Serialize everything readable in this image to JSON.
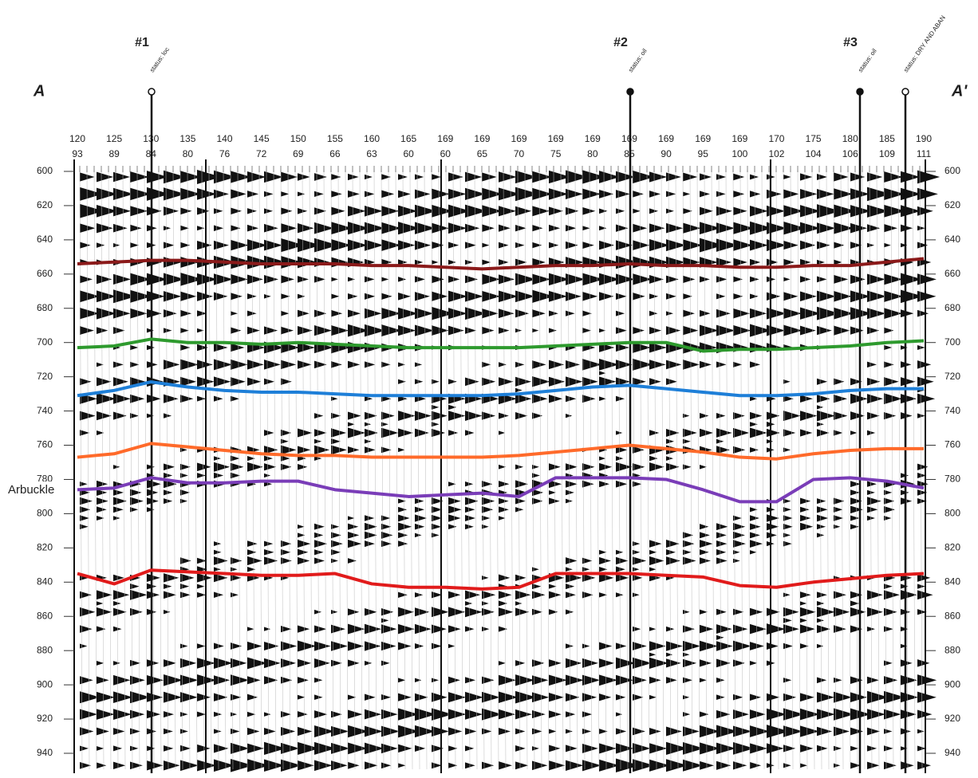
{
  "chart_data": {
    "type": "line",
    "section": {
      "start": "A",
      "end": "A'"
    },
    "annotation": "Arbuckle",
    "wells": [
      {
        "label": "#1",
        "status": "status: loc"
      },
      {
        "label": "#2",
        "status": "status: oil"
      },
      {
        "label": "#3",
        "status": "status: oil"
      },
      {
        "status": "status: DRY AND ABAN"
      }
    ],
    "categories": [
      "120",
      "125",
      "130",
      "135",
      "140",
      "145",
      "150",
      "155",
      "160",
      "165",
      "169",
      "169",
      "169",
      "169",
      "169",
      "169",
      "169",
      "169",
      "169",
      "170",
      "175",
      "180",
      "185",
      "190"
    ],
    "categories_row2": [
      "93",
      "89",
      "84",
      "80",
      "76",
      "72",
      "69",
      "66",
      "63",
      "60",
      "60",
      "65",
      "70",
      "75",
      "80",
      "85",
      "90",
      "95",
      "100",
      "102",
      "104",
      "106",
      "109",
      "111"
    ],
    "ylim": [
      600,
      940
    ],
    "yticks": [
      600,
      620,
      640,
      660,
      680,
      700,
      720,
      740,
      760,
      780,
      800,
      820,
      840,
      860,
      880,
      900,
      920,
      940
    ],
    "y_reversed": true,
    "series": [
      {
        "color": "#8b1a1a",
        "values": [
          654,
          653,
          652,
          652,
          653,
          654,
          654,
          654,
          655,
          655,
          656,
          657,
          656,
          655,
          655,
          654,
          655,
          655,
          656,
          656,
          655,
          655,
          653,
          651
        ]
      },
      {
        "color": "#2e9a2e",
        "values": [
          703,
          702,
          698,
          700,
          700,
          701,
          700,
          701,
          702,
          703,
          703,
          703,
          703,
          702,
          701,
          700,
          700,
          705,
          704,
          704,
          703,
          702,
          700,
          699
        ]
      },
      {
        "color": "#1e7fd8",
        "values": [
          731,
          728,
          723,
          726,
          728,
          729,
          729,
          730,
          731,
          731,
          731,
          731,
          730,
          728,
          726,
          725,
          727,
          729,
          731,
          731,
          730,
          728,
          727,
          727
        ]
      },
      {
        "color": "#ff6a2a",
        "values": [
          767,
          765,
          759,
          761,
          763,
          765,
          766,
          766,
          767,
          767,
          767,
          767,
          766,
          764,
          762,
          760,
          762,
          764,
          767,
          768,
          765,
          763,
          762,
          762
        ]
      },
      {
        "color": "#7a3db8",
        "values": [
          786,
          785,
          779,
          782,
          782,
          781,
          781,
          786,
          788,
          790,
          789,
          788,
          790,
          779,
          779,
          779,
          780,
          786,
          793,
          793,
          780,
          779,
          781,
          785
        ]
      },
      {
        "color": "#e11b1b",
        "values": [
          835,
          841,
          833,
          834,
          835,
          836,
          836,
          835,
          841,
          843,
          843,
          844,
          843,
          835,
          835,
          835,
          836,
          837,
          842,
          843,
          840,
          838,
          836,
          835
        ]
      }
    ]
  }
}
